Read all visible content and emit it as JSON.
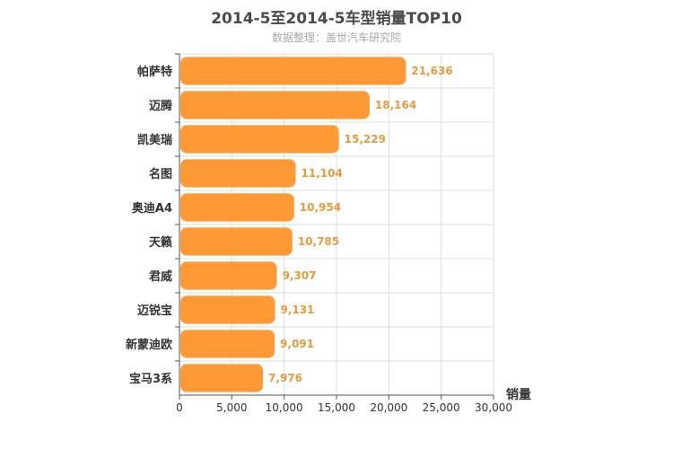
{
  "title": "2014-5至2014-5车型销量TOP10",
  "subtitle": "数据整理：盖世汽车研究院",
  "chart_data": {
    "type": "bar",
    "orientation": "horizontal",
    "categories": [
      "帕萨特",
      "迈腾",
      "凯美瑞",
      "名图",
      "奥迪A4",
      "天籁",
      "君威",
      "迈锐宝",
      "新蒙迪欧",
      "宝马3系"
    ],
    "values": [
      21636,
      18164,
      15229,
      11104,
      10954,
      10785,
      9307,
      9131,
      9091,
      7976
    ],
    "value_labels": [
      "21,636",
      "18,164",
      "15,229",
      "11,104",
      "10,954",
      "10,785",
      "9,307",
      "9,131",
      "9,091",
      "7,976"
    ],
    "xlabel": "销量",
    "xlim": [
      0,
      30000
    ],
    "xticks": [
      0,
      5000,
      10000,
      15000,
      20000,
      25000,
      30000
    ],
    "xtick_labels": [
      "0",
      "5,000",
      "10,000",
      "15,000",
      "20,000",
      "25,000",
      "30,000"
    ],
    "bar_color": "#ff9933",
    "label_color": "#e89a3c",
    "grid": true,
    "legend": "none"
  }
}
